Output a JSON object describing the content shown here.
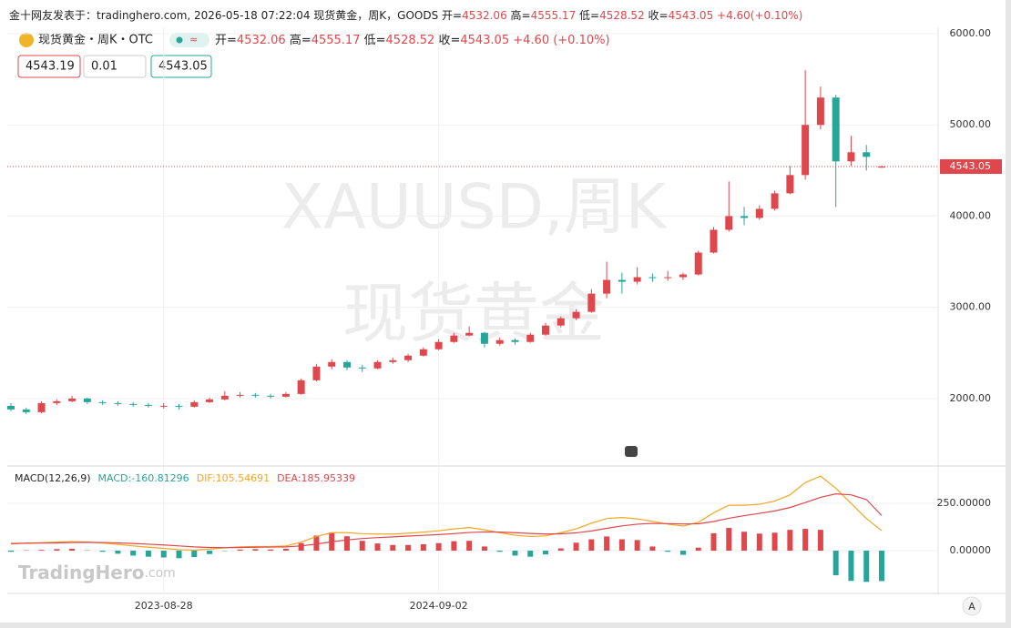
{
  "header": {
    "segments": [
      {
        "text": "金十网友发表于：tradinghero.com, 2026-05-18 07:22:04 现货黄金，周K，GOODS 开=",
        "color": "#222222"
      },
      {
        "text": "4532.06",
        "color": "#e0474c"
      },
      {
        "text": " 高=",
        "color": "#222222"
      },
      {
        "text": "4555.17",
        "color": "#e0474c"
      },
      {
        "text": " 低=",
        "color": "#222222"
      },
      {
        "text": "4528.52",
        "color": "#e0474c"
      },
      {
        "text": " 收=",
        "color": "#222222"
      },
      {
        "text": "4543.05",
        "color": "#e0474c"
      },
      {
        "text": " +4.60(+0.10%)",
        "color": "#e0474c"
      }
    ]
  },
  "symbol": {
    "name": "现货黄金・周K・OTC",
    "ohlc": [
      {
        "label": "开=",
        "value": "4532.06"
      },
      {
        "label": "高=",
        "value": "4555.17"
      },
      {
        "label": "低=",
        "value": "4528.52"
      },
      {
        "label": "收=",
        "value": "4543.05"
      }
    ],
    "change": "+4.60 (+0.10%)"
  },
  "inputs": [
    {
      "text": "4543.19",
      "color": "#e0474c"
    },
    {
      "text": "0.01",
      "color": "#cccccc"
    },
    {
      "text": "4543.05",
      "color": "#26a69a"
    }
  ],
  "watermark": [
    "XAUUSD,周K",
    "现货黄金"
  ],
  "logo": [
    "TradingHero",
    ".com"
  ],
  "button": "A",
  "chart_data": [
    {
      "type": "candlestick",
      "up_color": "#e0474c",
      "down_color": "#26a69a",
      "categories": [
        null,
        null,
        null,
        null,
        null,
        null,
        null,
        null,
        null,
        null,
        "2023-08-28",
        null,
        null,
        null,
        null,
        null,
        null,
        null,
        null,
        null,
        null,
        null,
        null,
        null,
        null,
        null,
        null,
        null,
        "2024-09-02",
        null,
        null,
        null,
        null,
        null,
        null,
        null,
        null,
        null,
        null,
        null,
        null,
        null,
        null,
        null,
        null,
        null,
        null,
        null,
        null,
        null,
        null,
        null,
        null,
        null,
        null,
        null,
        null,
        null
      ],
      "ohlc": [
        [
          1920,
          1950,
          1860,
          1880
        ],
        [
          1880,
          1900,
          1830,
          1850
        ],
        [
          1850,
          1970,
          1840,
          1950
        ],
        [
          1950,
          1990,
          1930,
          1970
        ],
        [
          1970,
          2030,
          1960,
          2000
        ],
        [
          2000,
          2010,
          1940,
          1960
        ],
        [
          1960,
          1980,
          1930,
          1950
        ],
        [
          1950,
          1970,
          1920,
          1940
        ],
        [
          1940,
          1960,
          1910,
          1930
        ],
        [
          1930,
          1950,
          1900,
          1920
        ],
        [
          1920,
          1950,
          1890,
          1920
        ],
        [
          1920,
          1940,
          1880,
          1910
        ],
        [
          1910,
          1980,
          1900,
          1960
        ],
        [
          1960,
          2010,
          1950,
          1990
        ],
        [
          1990,
          2080,
          1980,
          2030
        ],
        [
          2030,
          2070,
          2010,
          2040
        ],
        [
          2040,
          2060,
          2010,
          2030
        ],
        [
          2030,
          2050,
          2000,
          2020
        ],
        [
          2020,
          2070,
          2010,
          2050
        ],
        [
          2050,
          2220,
          2040,
          2200
        ],
        [
          2200,
          2380,
          2190,
          2350
        ],
        [
          2350,
          2430,
          2320,
          2400
        ],
        [
          2400,
          2420,
          2310,
          2340
        ],
        [
          2340,
          2370,
          2290,
          2330
        ],
        [
          2330,
          2420,
          2320,
          2400
        ],
        [
          2400,
          2450,
          2380,
          2420
        ],
        [
          2420,
          2490,
          2400,
          2470
        ],
        [
          2470,
          2560,
          2460,
          2540
        ],
        [
          2540,
          2650,
          2530,
          2620
        ],
        [
          2620,
          2720,
          2610,
          2690
        ],
        [
          2690,
          2790,
          2680,
          2720
        ],
        [
          2720,
          2730,
          2560,
          2600
        ],
        [
          2600,
          2670,
          2580,
          2640
        ],
        [
          2640,
          2660,
          2590,
          2620
        ],
        [
          2620,
          2720,
          2610,
          2700
        ],
        [
          2700,
          2830,
          2690,
          2800
        ],
        [
          2800,
          2900,
          2780,
          2880
        ],
        [
          2880,
          2980,
          2860,
          2950
        ],
        [
          2950,
          3200,
          2940,
          3150
        ],
        [
          3150,
          3500,
          3100,
          3300
        ],
        [
          3300,
          3380,
          3150,
          3280
        ],
        [
          3280,
          3440,
          3250,
          3330
        ],
        [
          3330,
          3370,
          3280,
          3320
        ],
        [
          3320,
          3400,
          3290,
          3330
        ],
        [
          3330,
          3380,
          3300,
          3360
        ],
        [
          3360,
          3620,
          3350,
          3600
        ],
        [
          3600,
          3880,
          3590,
          3850
        ],
        [
          3850,
          4380,
          3830,
          4000
        ],
        [
          4000,
          4100,
          3900,
          3980
        ],
        [
          3980,
          4120,
          3960,
          4080
        ],
        [
          4080,
          4280,
          4060,
          4250
        ],
        [
          4250,
          4550,
          4240,
          4450
        ],
        [
          4450,
          5600,
          4400,
          5000
        ],
        [
          5000,
          5420,
          4950,
          5300
        ],
        [
          5300,
          5330,
          4100,
          4600
        ],
        [
          4600,
          4880,
          4550,
          4700
        ],
        [
          4700,
          4780,
          4500,
          4650
        ],
        [
          4532.06,
          4555.17,
          4528.52,
          4543.05
        ]
      ],
      "ylim": [
        1280,
        6070
      ],
      "yticks": [
        {
          "value": 2000,
          "label": "2000.00"
        },
        {
          "value": 3000,
          "label": "3000.00"
        },
        {
          "value": 4000,
          "label": "4000.00"
        },
        {
          "value": 5000,
          "label": "5000.00"
        },
        {
          "value": 6000,
          "label": "6000.00"
        }
      ],
      "last_price_label": "4543.05",
      "grid": true
    },
    {
      "type": "macd",
      "title": "MACD(12,26,9)",
      "histogram": {
        "name": "MACD:-160.81296",
        "color": "#26a69a",
        "up_color": "#e0474c",
        "down_color": "#26a69a",
        "values": [
          -6,
          2,
          4,
          8,
          10,
          2,
          -6,
          -16,
          -26,
          -32,
          -36,
          -40,
          -34,
          -18,
          -2,
          6,
          8,
          6,
          10,
          40,
          80,
          96,
          76,
          52,
          38,
          30,
          30,
          34,
          40,
          50,
          52,
          22,
          -6,
          -26,
          -32,
          -20,
          12,
          42,
          60,
          75,
          60,
          56,
          22,
          -6,
          -22,
          16,
          92,
          120,
          100,
          90,
          95,
          110,
          115,
          110,
          -130,
          -160,
          -165,
          -160.81296
        ]
      },
      "series": [
        {
          "name": "DIF:105.54691",
          "color": "#f5a623",
          "values": [
            35,
            40,
            42,
            45,
            48,
            45,
            40,
            33,
            25,
            18,
            12,
            5,
            3,
            8,
            15,
            20,
            22,
            22,
            25,
            45,
            75,
            95,
            95,
            90,
            88,
            88,
            92,
            98,
            105,
            115,
            122,
            110,
            95,
            82,
            75,
            78,
            95,
            115,
            145,
            170,
            175,
            168,
            155,
            140,
            130,
            150,
            200,
            240,
            240,
            245,
            262,
            295,
            360,
            394,
            330,
            250,
            170,
            105.54691
          ]
        },
        {
          "name": "DEA:185.95339",
          "color": "#e0474c",
          "values": [
            38,
            39,
            40,
            41,
            43,
            44,
            43,
            41,
            38,
            34,
            30,
            25,
            20,
            17,
            16,
            17,
            18,
            19,
            20,
            25,
            35,
            47,
            57,
            64,
            69,
            73,
            77,
            81,
            85,
            90,
            96,
            99,
            98,
            95,
            91,
            88,
            89,
            94,
            104,
            118,
            131,
            140,
            144,
            143,
            141,
            142,
            154,
            171,
            185,
            197,
            210,
            228,
            254,
            282,
            300,
            295,
            270,
            185.95339
          ]
        }
      ],
      "ylim": [
        -226,
        433
      ],
      "yticks": [
        {
          "value": 0,
          "label": "0.00000"
        },
        {
          "value": 250,
          "label": "250.00000"
        }
      ]
    }
  ]
}
